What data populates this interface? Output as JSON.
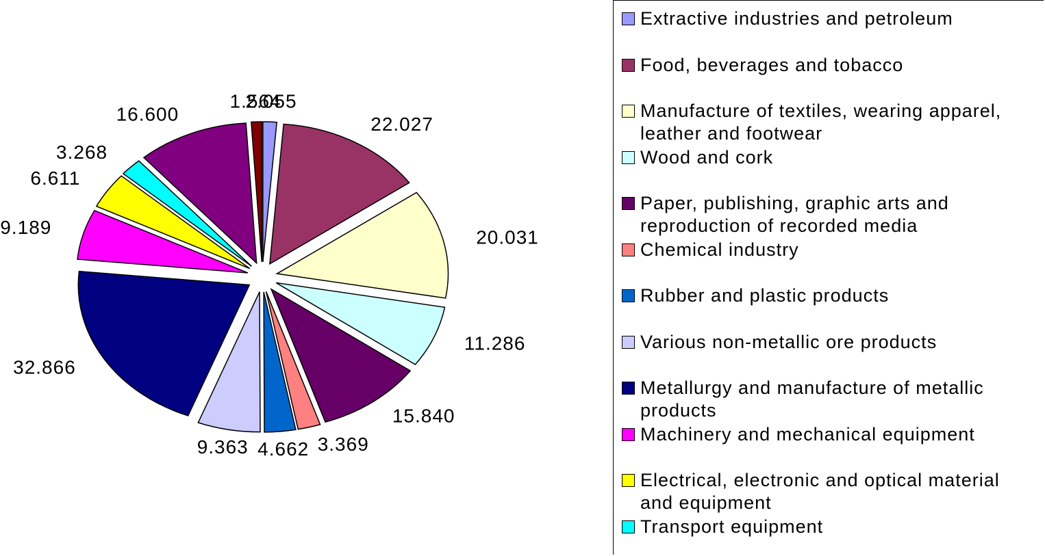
{
  "chart_data": {
    "type": "pie",
    "categories": [
      "Extractive industries and petroleum",
      "Food, beverages and tobacco",
      "Manufacture of textiles, wearing apparel, leather and footwear",
      "Wood and cork",
      "Paper, publishing, graphic arts and reproduction of recorded media",
      "Chemical industry",
      "Rubber and plastic products",
      "Various non-metallic ore products",
      "Metallurgy and manufacture of metallic products",
      "Machinery and mechanical equipment",
      "Electrical, electronic and optical material and equipment",
      "Transport equipment",
      null,
      null
    ],
    "values": [
      2.055,
      22.027,
      20.031,
      11.286,
      15.84,
      3.369,
      4.662,
      9.363,
      32.866,
      9.189,
      6.611,
      3.268,
      16.6,
      1.564
    ],
    "value_labels": [
      "2.055",
      "22.027",
      "20.031",
      "11.286",
      "15.840",
      "3.369",
      "4.662",
      "9.363",
      "32.866",
      "9.189",
      "6.611",
      "3.268",
      "16.600",
      "1.564"
    ],
    "colors": [
      "#9999ff",
      "#993366",
      "#ffffcc",
      "#ccffff",
      "#660066",
      "#ff8080",
      "#0066cc",
      "#ccccff",
      "#000080",
      "#ff00ff",
      "#ffff00",
      "#00ffff",
      "#800080",
      "#800000"
    ],
    "legend": "right"
  }
}
